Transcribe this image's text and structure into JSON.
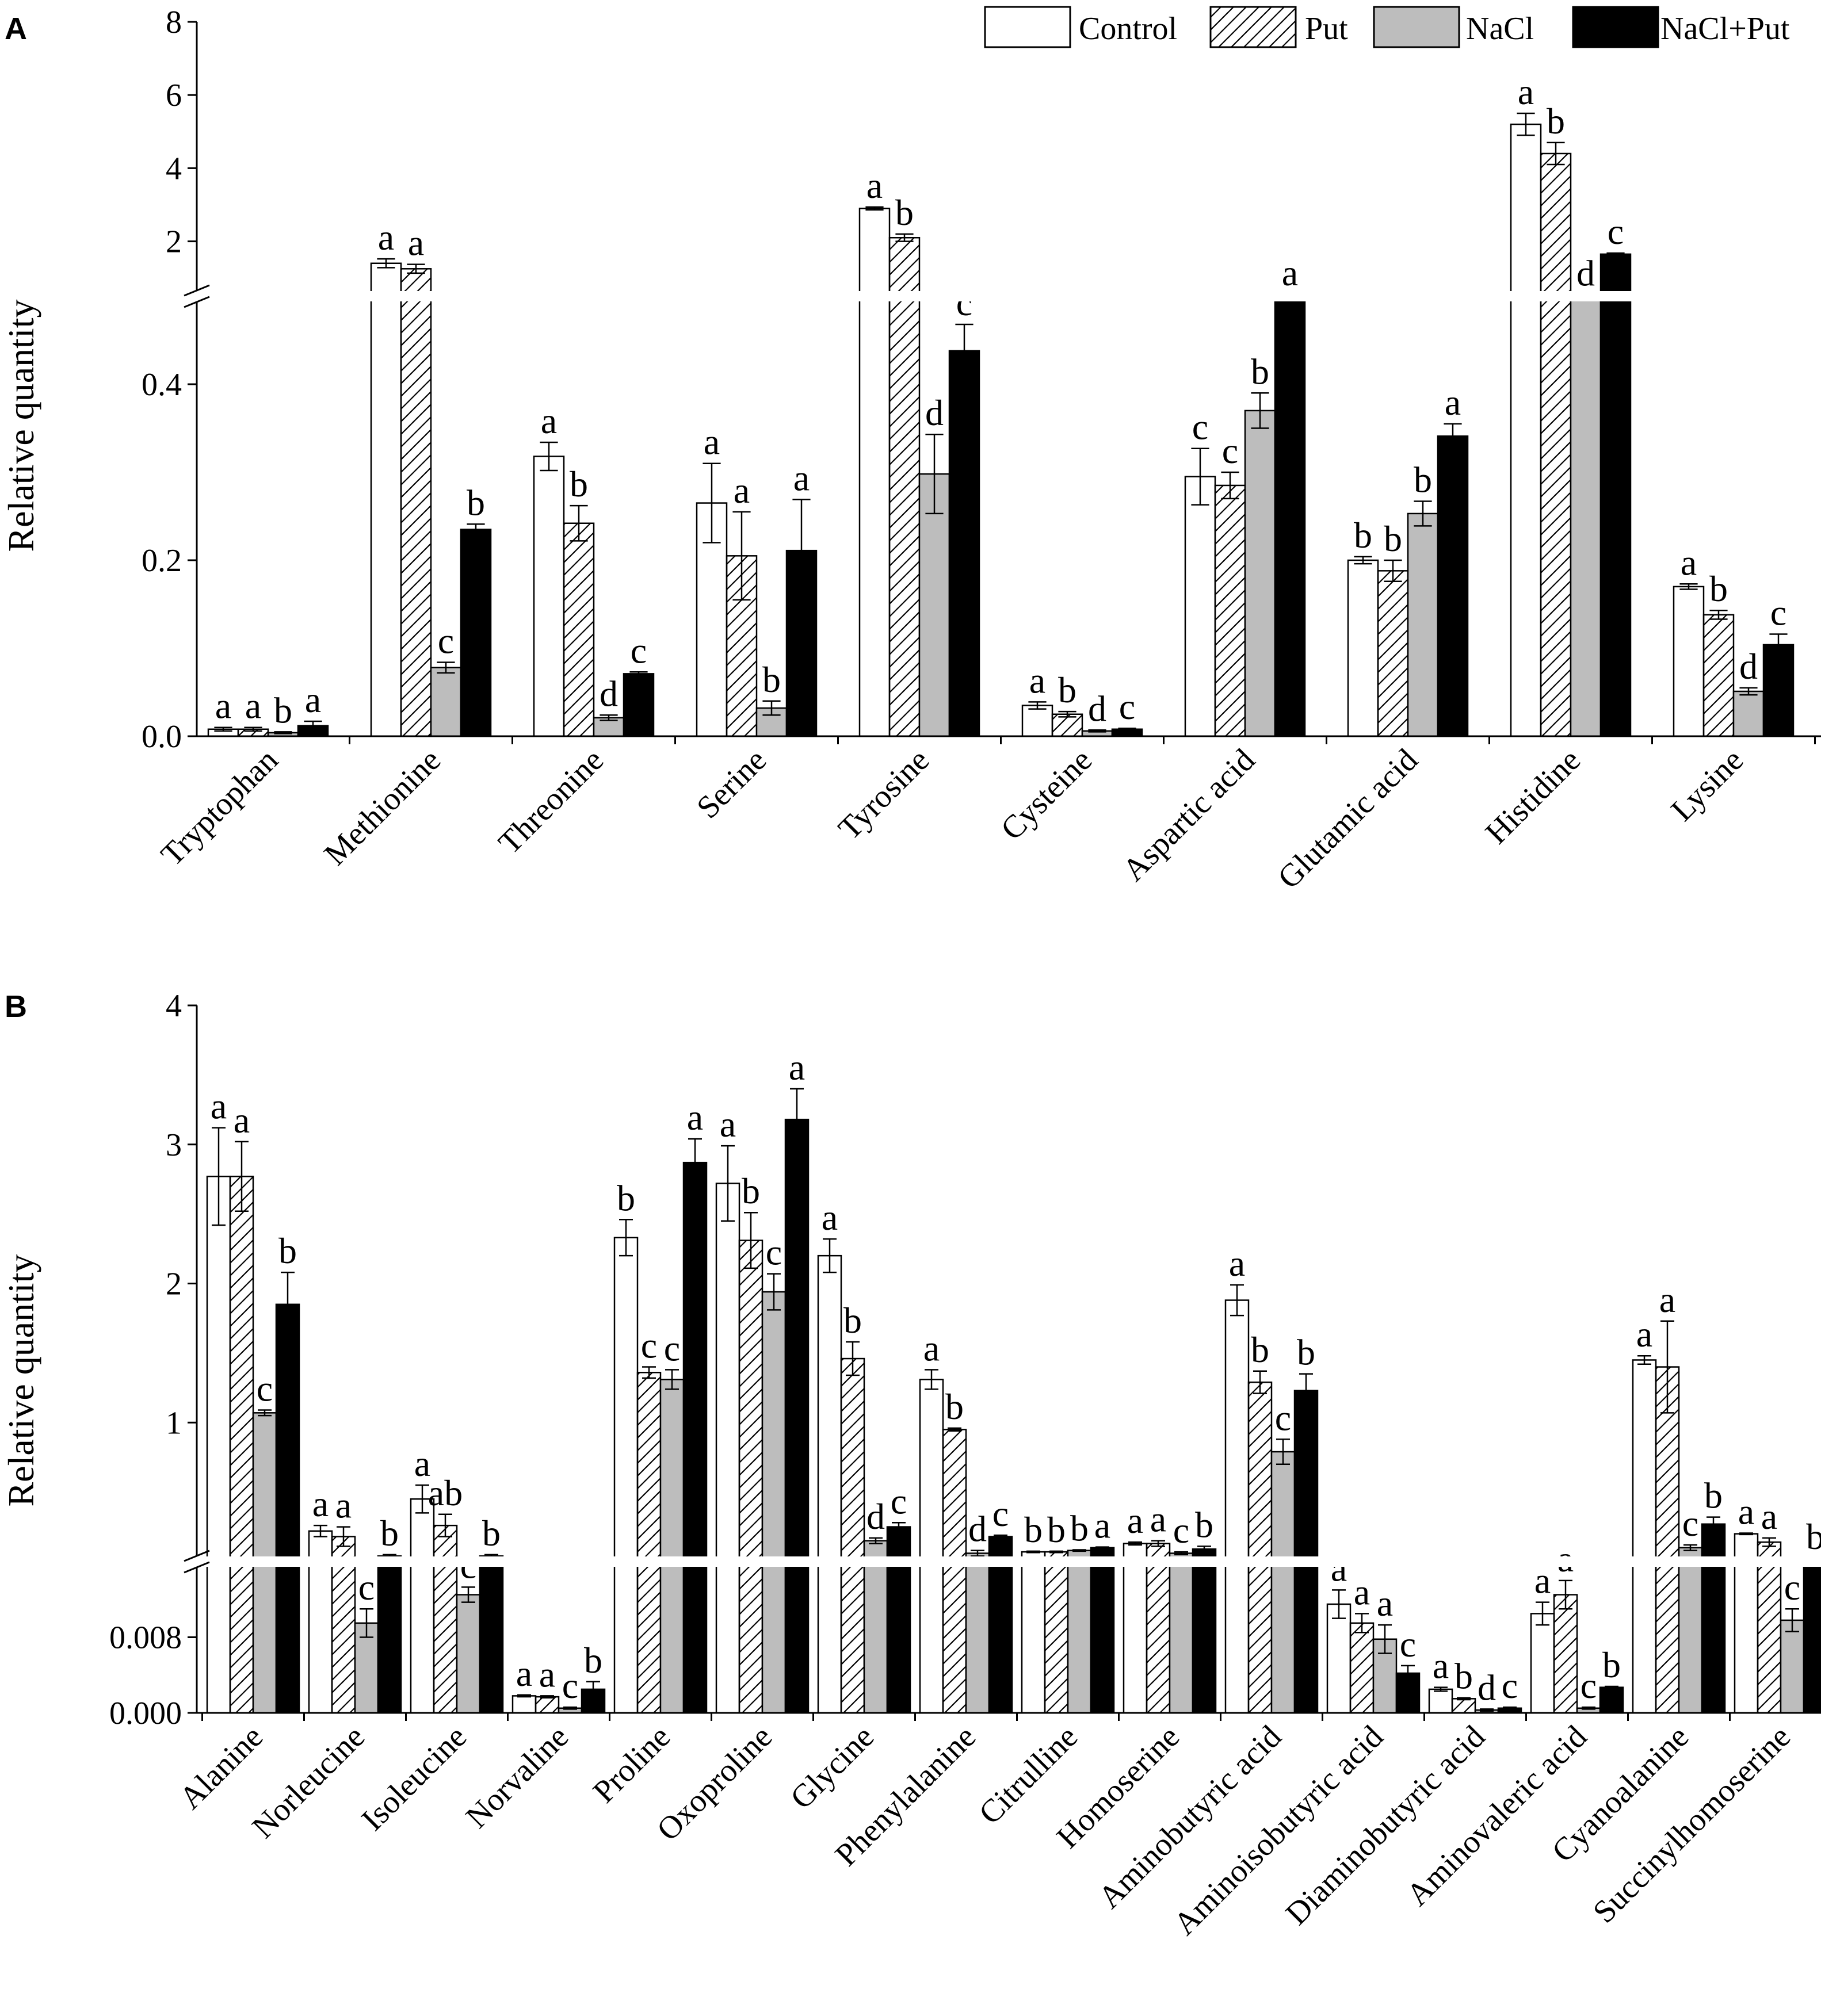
{
  "chart_data": [
    {
      "type": "bar",
      "panel": "A",
      "ylabel": "Relative quantity",
      "axis_break": {
        "lower": [
          0.0,
          0.5
        ],
        "upper": [
          0.5,
          8
        ]
      },
      "yticks_lower": [
        "0.0",
        "0.2",
        "0.4"
      ],
      "yticks_upper": [
        "2",
        "4",
        "6",
        "8"
      ],
      "categories": [
        "Tryptophan",
        "Methionine",
        "Threonine",
        "Serine",
        "Tyrosine",
        "Cysteine",
        "Aspartic acid",
        "Glutamic acid",
        "Histidine",
        "Lysine"
      ],
      "series": [
        {
          "name": "Control",
          "values": [
            0.008,
            1.4,
            0.318,
            0.265,
            2.9,
            0.035,
            0.295,
            0.2,
            5.2,
            0.17
          ],
          "errors": [
            0.002,
            0.12,
            0.016,
            0.045,
            0.04,
            0.004,
            0.032,
            0.004,
            0.3,
            0.003
          ],
          "letters": [
            "a",
            "a",
            "a",
            "a",
            "a",
            "a",
            "c",
            "b",
            "a",
            "a"
          ]
        },
        {
          "name": "Put",
          "values": [
            0.008,
            1.25,
            0.242,
            0.205,
            2.1,
            0.025,
            0.285,
            0.188,
            4.4,
            0.138
          ],
          "errors": [
            0.002,
            0.12,
            0.02,
            0.05,
            0.1,
            0.003,
            0.015,
            0.012,
            0.3,
            0.005
          ],
          "letters": [
            "a",
            "a",
            "b",
            "a",
            "b",
            "b",
            "c",
            "b",
            "b",
            "b"
          ]
        },
        {
          "name": "NaCl",
          "values": [
            0.004,
            0.078,
            0.021,
            0.032,
            0.298,
            0.006,
            0.37,
            0.253,
            0.52,
            0.051
          ],
          "errors": [
            0.001,
            0.006,
            0.003,
            0.008,
            0.045,
            0.001,
            0.02,
            0.014,
            0.02,
            0.004
          ],
          "letters": [
            "b",
            "c",
            "d",
            "b",
            "d",
            "d",
            "b",
            "b",
            "d",
            "d"
          ]
        },
        {
          "name": "NaCl+Put",
          "values": [
            0.012,
            0.235,
            0.071,
            0.211,
            0.438,
            0.008,
            0.52,
            0.341,
            1.65,
            0.104
          ],
          "errors": [
            0.005,
            0.006,
            0.002,
            0.058,
            0.03,
            0.001,
            0.03,
            0.014,
            0.03,
            0.012
          ],
          "letters": [
            "a",
            "b",
            "c",
            "a",
            "c",
            "c",
            "a",
            "a",
            "c",
            "c"
          ]
        }
      ]
    },
    {
      "type": "bar",
      "panel": "B",
      "ylabel": "Relative quantity",
      "axis_break": {
        "lower": [
          0.0,
          0.016
        ],
        "upper": [
          0.0,
          4
        ]
      },
      "yticks_lower": [
        "0.000",
        "0.008"
      ],
      "yticks_upper": [
        "1",
        "2",
        "3",
        "4"
      ],
      "categories": [
        "Alanine",
        "Norleucine",
        "Isoleucine",
        "Norvaline",
        "Proline",
        "Oxoproline",
        "Glycine",
        "Phenylalanine",
        "Citrulline",
        "Homoserine",
        "Aminobutyric acid",
        "Aminoisobutyric acid",
        "Diaminobutyric acid",
        "Aminovaleric acid",
        "Cyanoalanine",
        "Succinylhomoserine"
      ],
      "series": [
        {
          "name": "Control",
          "values": [
            2.77,
            0.22,
            0.45,
            0.0018,
            2.33,
            2.72,
            2.2,
            1.31,
            0.07,
            0.13,
            1.88,
            0.0115,
            0.0025,
            0.0105,
            1.45,
            0.2
          ],
          "errors": [
            0.35,
            0.04,
            0.1,
            0.0001,
            0.13,
            0.27,
            0.12,
            0.07,
            0.005,
            0.01,
            0.11,
            0.0015,
            0.0002,
            0.0012,
            0.03,
            0.005
          ],
          "letters": [
            "a",
            "a",
            "a",
            "a",
            "b",
            "a",
            "a",
            "a",
            "b",
            "a",
            "a",
            "a",
            "a",
            "a",
            "a",
            "a"
          ]
        },
        {
          "name": "Put",
          "values": [
            2.77,
            0.18,
            0.26,
            0.0017,
            1.36,
            2.31,
            1.46,
            0.95,
            0.07,
            0.13,
            1.29,
            0.0095,
            0.0015,
            0.0125,
            1.4,
            0.14
          ],
          "errors": [
            0.25,
            0.07,
            0.08,
            0.0001,
            0.04,
            0.2,
            0.12,
            0.01,
            0.005,
            0.02,
            0.08,
            0.001,
            0.0001,
            0.0015,
            0.33,
            0.03
          ],
          "letters": [
            "a",
            "a",
            "ab",
            "a",
            "c",
            "b",
            "b",
            "b",
            "b",
            "a",
            "b",
            "a",
            "b",
            "a",
            "a",
            "a"
          ]
        },
        {
          "name": "NaCl",
          "values": [
            1.07,
            0.0095,
            0.0125,
            0.0005,
            1.31,
            1.94,
            0.15,
            0.06,
            0.08,
            0.06,
            0.79,
            0.0078,
            0.0003,
            0.0005,
            0.1,
            0.0098
          ],
          "errors": [
            0.02,
            0.0015,
            0.0008,
            0.0001,
            0.07,
            0.13,
            0.02,
            0.02,
            0.005,
            0.01,
            0.09,
            0.0015,
            0.0001,
            0.0001,
            0.02,
            0.0012
          ],
          "letters": [
            "c",
            "c",
            "c",
            "c",
            "c",
            "c",
            "d",
            "d",
            "b",
            "c",
            "c",
            "a",
            "d",
            "c",
            "c",
            "c"
          ]
        },
        {
          "name": "NaCl+Put",
          "values": [
            1.85,
            0.04,
            0.04,
            0.0025,
            2.87,
            3.18,
            0.25,
            0.18,
            0.1,
            0.09,
            1.23,
            0.0042,
            0.0005,
            0.0027,
            0.27,
            0.02
          ],
          "errors": [
            0.23,
            0.01,
            0.01,
            0.0008,
            0.17,
            0.22,
            0.03,
            0.01,
            0.005,
            0.02,
            0.12,
            0.0008,
            0.0001,
            0.0001,
            0.05,
            0.005
          ],
          "letters": [
            "b",
            "b",
            "b",
            "b",
            "a",
            "a",
            "c",
            "c",
            "a",
            "b",
            "b",
            "c",
            "c",
            "b",
            "b",
            "b"
          ]
        }
      ]
    }
  ],
  "legend": {
    "items": [
      "Control",
      "Put",
      "NaCl",
      "NaCl+Put"
    ]
  },
  "colors": {
    "Control": "#ffffff",
    "Put": "#ffffff",
    "NaCl": "#bdbdbd",
    "NaCl+Put": "#000000"
  }
}
